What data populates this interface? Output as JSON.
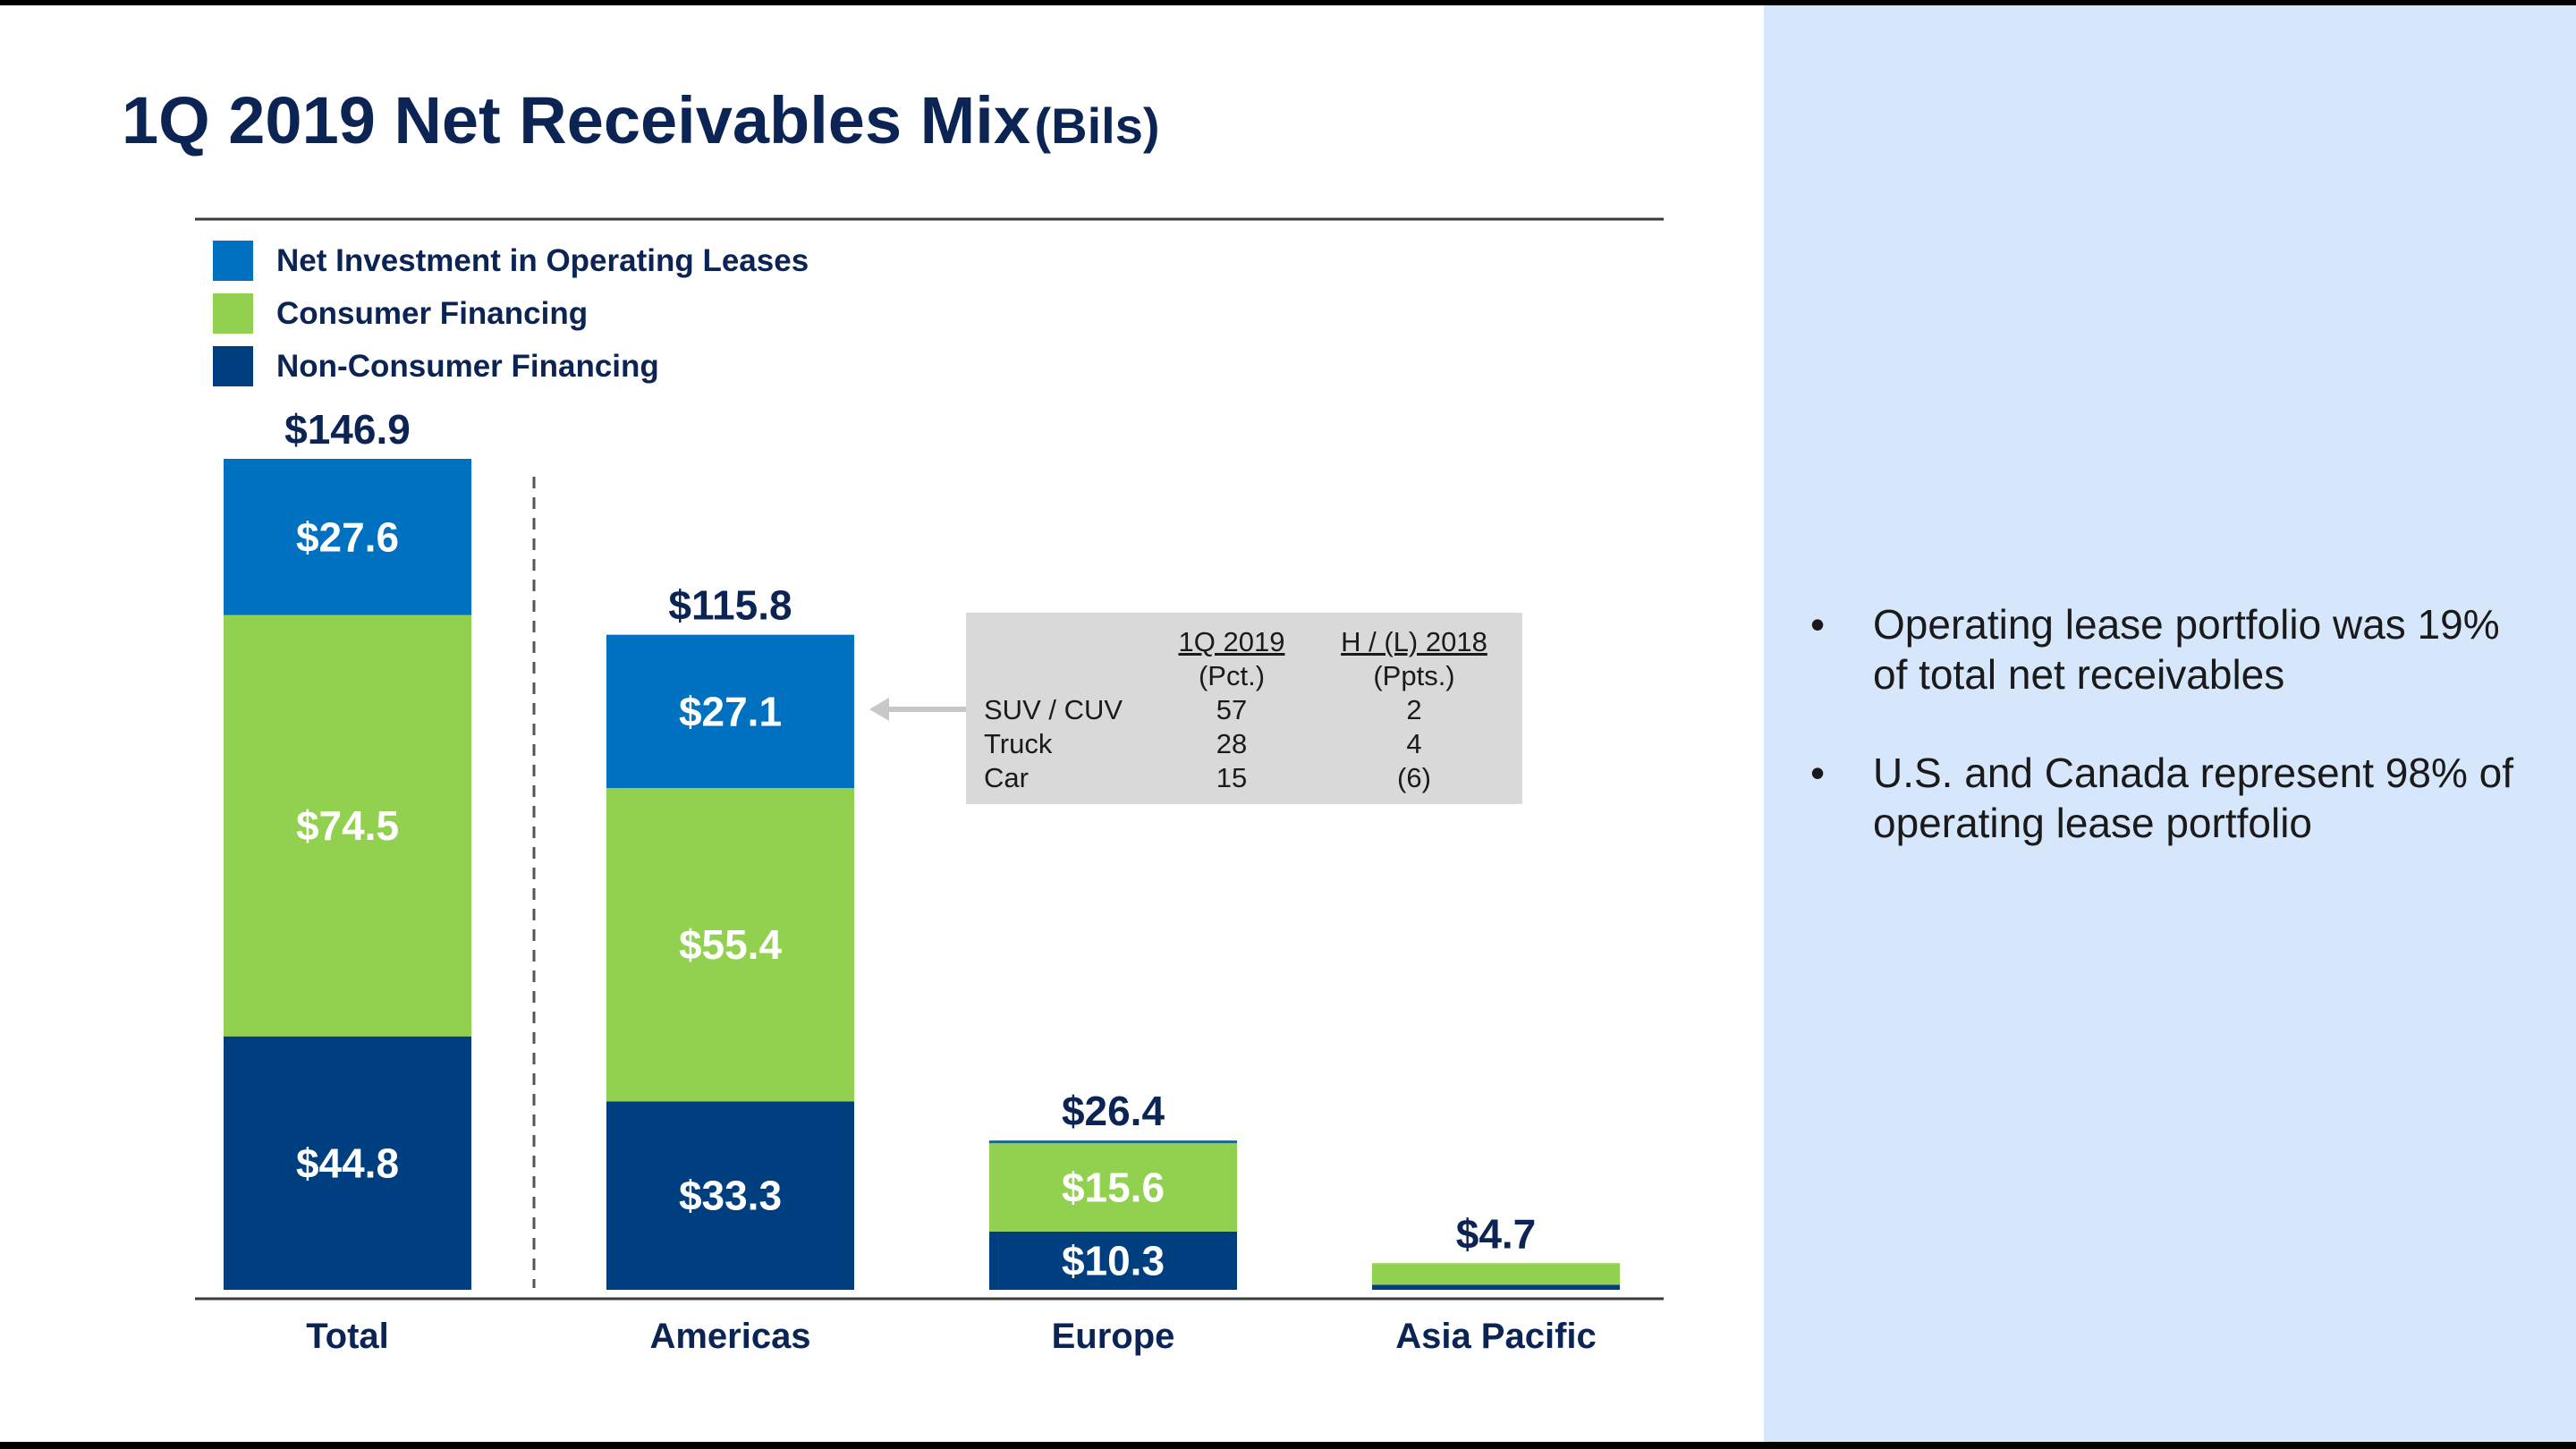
{
  "title": {
    "main": "1Q 2019 Net Receivables Mix",
    "unit": "(Bils)"
  },
  "colors": {
    "lease": "#0070c0",
    "consumer": "#92d050",
    "nonconsumer": "#003f7f",
    "title": "#0b2454",
    "panel": "#d6e6fb"
  },
  "chart_data": {
    "type": "bar",
    "stacked": true,
    "categories": [
      "Total",
      "Americas",
      "Europe",
      "Asia Pacific"
    ],
    "series": [
      {
        "name": "Non-Consumer Financing",
        "key": "nonconsumer",
        "values": [
          44.8,
          33.3,
          10.3,
          0.9
        ],
        "labels": [
          "$44.8",
          "$33.3",
          "$10.3",
          ""
        ]
      },
      {
        "name": "Consumer Financing",
        "key": "consumer",
        "values": [
          74.5,
          55.4,
          15.6,
          3.8
        ],
        "labels": [
          "$74.5",
          "$55.4",
          "$15.6",
          ""
        ]
      },
      {
        "name": "Net Investment in Operating Leases",
        "key": "lease",
        "values": [
          27.6,
          27.1,
          0.5,
          0.0
        ],
        "labels": [
          "$27.6",
          "$27.1",
          "",
          ""
        ]
      }
    ],
    "totals": [
      146.9,
      115.8,
      26.4,
      4.7
    ],
    "total_labels": [
      "$146.9",
      "$115.8",
      "$26.4",
      "$4.7"
    ],
    "ylim": [
      0,
      150
    ],
    "legend": [
      {
        "label": "Net Investment in Operating Leases",
        "key": "lease"
      },
      {
        "label": "Consumer Financing",
        "key": "consumer"
      },
      {
        "label": "Non-Consumer Financing",
        "key": "nonconsumer"
      }
    ],
    "legend_position": "top-left"
  },
  "lease_mix": {
    "headers": [
      {
        "top": "1Q 2019",
        "sub": "(Pct.)"
      },
      {
        "top": "H / (L) 2018",
        "sub": "(Ppts.)"
      }
    ],
    "rows": [
      {
        "label": "SUV / CUV",
        "pct": "57",
        "change": "2"
      },
      {
        "label": "Truck",
        "pct": "28",
        "change": "4"
      },
      {
        "label": "Car",
        "pct": "15",
        "change": "(6)"
      }
    ]
  },
  "bullets": [
    "Operating lease portfolio was 19% of total net receivables",
    "U.S. and Canada represent 98% of operating lease portfolio"
  ]
}
